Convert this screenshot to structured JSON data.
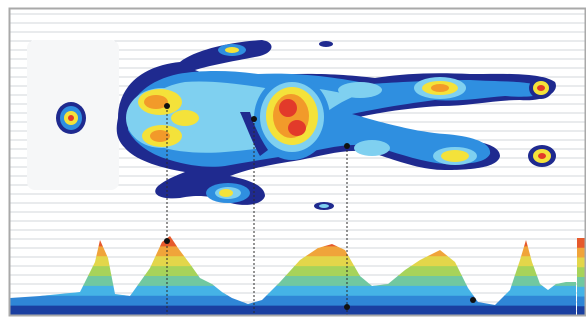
{
  "palette": {
    "frame": "#a9a9a9",
    "background": "#ffffff",
    "gridline": "#d3d7db",
    "footprint_low": "#1f2a8f",
    "footprint_mid": "#2f8fe0",
    "footprint_light": "#7fd0f0",
    "heat_yellow": "#f4e23a",
    "heat_orange": "#f29a2a",
    "heat_red": "#e23a2a",
    "profile_bands": [
      "#1a3fa0",
      "#2f86d6",
      "#45b3e6",
      "#71c8a0",
      "#a7d35a",
      "#e3d64a",
      "#f0a43a",
      "#e65a2c"
    ],
    "leader_line": "#2b2b2b",
    "marker": "#111111"
  },
  "icons": [
    "legend-color-scale-icon"
  ],
  "markers": [
    {
      "id": "marker-hip",
      "x_frac": 0.285,
      "profile_level": "peak"
    },
    {
      "id": "marker-waist",
      "x_frac": 0.433,
      "profile_level": "low"
    },
    {
      "id": "marker-knee",
      "x_frac": 0.592,
      "profile_level": "base"
    },
    {
      "id": "marker-ankle",
      "x_frac": 0.808,
      "profile_level": "base"
    }
  ]
}
